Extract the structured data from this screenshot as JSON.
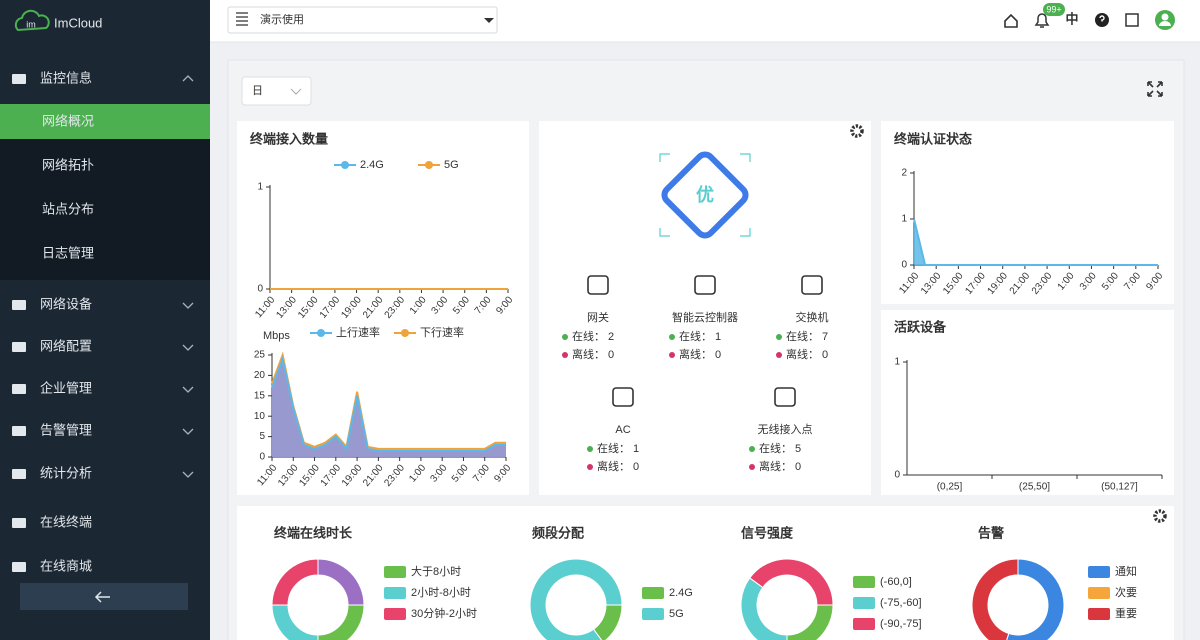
{
  "sidebar": {
    "logo": "im",
    "brand": "ImCloud",
    "menu": [
      {
        "label": "监控信息",
        "children": [
          "网络概况",
          "网络拓扑",
          "站点分布",
          "日志管理"
        ],
        "active_child": 0
      },
      {
        "label": "网络设备",
        "expandable": true
      },
      {
        "label": "网络配置",
        "expandable": true
      },
      {
        "label": "企业管理",
        "expandable": true
      },
      {
        "label": "告警管理",
        "expandable": true
      },
      {
        "label": "统计分析",
        "expandable": true
      },
      {
        "label": "在线终端"
      },
      {
        "label": "在线商城"
      }
    ]
  },
  "header": {
    "project": "演示使用",
    "notifications": "99+",
    "language": "中"
  },
  "period": "日",
  "terminal_count": {
    "type": "line",
    "title": "终端接入数量",
    "categories": [
      "11:00",
      null,
      "13:00",
      null,
      "15:00",
      null,
      "17:00",
      null,
      "19:00",
      null,
      "21:00",
      null,
      "23:00",
      null,
      "1:00",
      null,
      "3:00",
      null,
      "5:00",
      null,
      "7:00",
      null,
      "9:00"
    ],
    "series": [
      {
        "name": "2.4G",
        "color": "#5bb8e8",
        "values": [
          0,
          0,
          0,
          0,
          0,
          0,
          0,
          0,
          0,
          0,
          0,
          0,
          0,
          0,
          0,
          0,
          0,
          0,
          0,
          0,
          0,
          0,
          0
        ]
      },
      {
        "name": "5G",
        "color": "#f0a23b",
        "values": [
          0,
          0,
          0,
          0,
          0,
          0,
          0,
          0,
          0,
          0,
          0,
          0,
          0,
          0,
          0,
          0,
          0,
          0,
          0,
          0,
          0,
          0,
          0
        ]
      }
    ],
    "ylim": [
      0,
      1
    ],
    "yticks": [
      0,
      1
    ]
  },
  "throughput": {
    "type": "area",
    "y_label": "Mbps",
    "categories": [
      "11:00",
      null,
      "13:00",
      null,
      "15:00",
      null,
      "17:00",
      null,
      "19:00",
      null,
      "21:00",
      null,
      "23:00",
      null,
      "1:00",
      null,
      "3:00",
      null,
      "5:00",
      null,
      "7:00",
      null,
      "9:00"
    ],
    "series": [
      {
        "name": "上行速率",
        "color": "#5bb8e8",
        "area_color": "#8790d8",
        "values": [
          17,
          24,
          12,
          3,
          2,
          3,
          5,
          2,
          15,
          2,
          1.5,
          1.5,
          1.5,
          1.5,
          1.5,
          1.5,
          1.5,
          1.5,
          1.5,
          1.5,
          1.5,
          3,
          3
        ]
      },
      {
        "name": "下行速率",
        "color": "#f0a23b",
        "area_color": "#f3c98a",
        "values": [
          18,
          25,
          12.5,
          3.5,
          2.5,
          3.5,
          5.5,
          2.5,
          16,
          2.5,
          2,
          2,
          2,
          2,
          2,
          2,
          2,
          2,
          2,
          2,
          2,
          3.5,
          3.5
        ]
      }
    ],
    "ylim": [
      0,
      25
    ],
    "yticks": [
      0,
      5,
      10,
      15,
      20,
      25
    ]
  },
  "health": {
    "grade": "优",
    "online_label": "在线：",
    "offline_label": "离线：",
    "devices": [
      {
        "name": "网关",
        "online": 2,
        "offline": 0
      },
      {
        "name": "智能云控制器",
        "online": 1,
        "offline": 0
      },
      {
        "name": "交换机",
        "online": 7,
        "offline": 0
      },
      {
        "name": "AC",
        "online": 1,
        "offline": 0
      },
      {
        "name": "无线接入点",
        "online": 5,
        "offline": 0
      }
    ]
  },
  "auth_status": {
    "type": "area",
    "title": "终端认证状态",
    "categories": [
      "11:00",
      null,
      "13:00",
      null,
      "15:00",
      null,
      "17:00",
      null,
      "19:00",
      null,
      "21:00",
      null,
      "23:00",
      null,
      "1:00",
      null,
      "3:00",
      null,
      "5:00",
      null,
      "7:00",
      null,
      "9:00"
    ],
    "series": [
      {
        "color": "#5bb8e8",
        "area_color": "#5bb8e8",
        "values": [
          1,
          0,
          0,
          0,
          0,
          0,
          0,
          0,
          0,
          0,
          0,
          0,
          0,
          0,
          0,
          0,
          0,
          0,
          0,
          0,
          0,
          0,
          0
        ]
      }
    ],
    "ylim": [
      0,
      2
    ],
    "yticks": [
      0,
      1,
      2
    ]
  },
  "active_devices": {
    "type": "bar",
    "title": "活跃设备",
    "categories": [
      "(0,25]",
      "(25,50]",
      "(50,127]"
    ],
    "values": [
      0,
      0,
      0
    ],
    "color": "#5bb8e8",
    "ylim": [
      0,
      1
    ],
    "yticks": [
      0,
      1
    ]
  },
  "distribution": [
    {
      "type": "donut",
      "title": "终端在线时长",
      "segments": [
        {
          "name": "大于8小时",
          "color": "#6abf4b",
          "value": 25
        },
        {
          "name": "2小时-8小时",
          "color": "#5bcfcf",
          "value": 25
        },
        {
          "name": "30分钟-2小时",
          "color": "#e8436a",
          "value": 25
        },
        {
          "color": "#9b6fc4",
          "value": 25
        }
      ]
    },
    {
      "type": "donut",
      "title": "频段分配",
      "segments": [
        {
          "name": "2.4G",
          "color": "#6abf4b",
          "value": 15
        },
        {
          "name": "5G",
          "color": "#5bcfcf",
          "value": 85
        }
      ]
    },
    {
      "type": "donut",
      "title": "信号强度",
      "segments": [
        {
          "name": "(-60,0]",
          "color": "#6abf4b",
          "value": 25
        },
        {
          "name": "(-75,-60]",
          "color": "#5bcfcf",
          "value": 35
        },
        {
          "name": "(-90,-75]",
          "color": "#e8436a",
          "value": 40
        }
      ]
    },
    {
      "type": "donut",
      "title": "告警",
      "segments": [
        {
          "name": "通知",
          "color": "#3a86e0",
          "value": 55
        },
        {
          "name": "次要",
          "color": "#f5a53a",
          "value": 0
        },
        {
          "name": "重要",
          "color": "#d9363e",
          "value": 45
        }
      ]
    }
  ]
}
